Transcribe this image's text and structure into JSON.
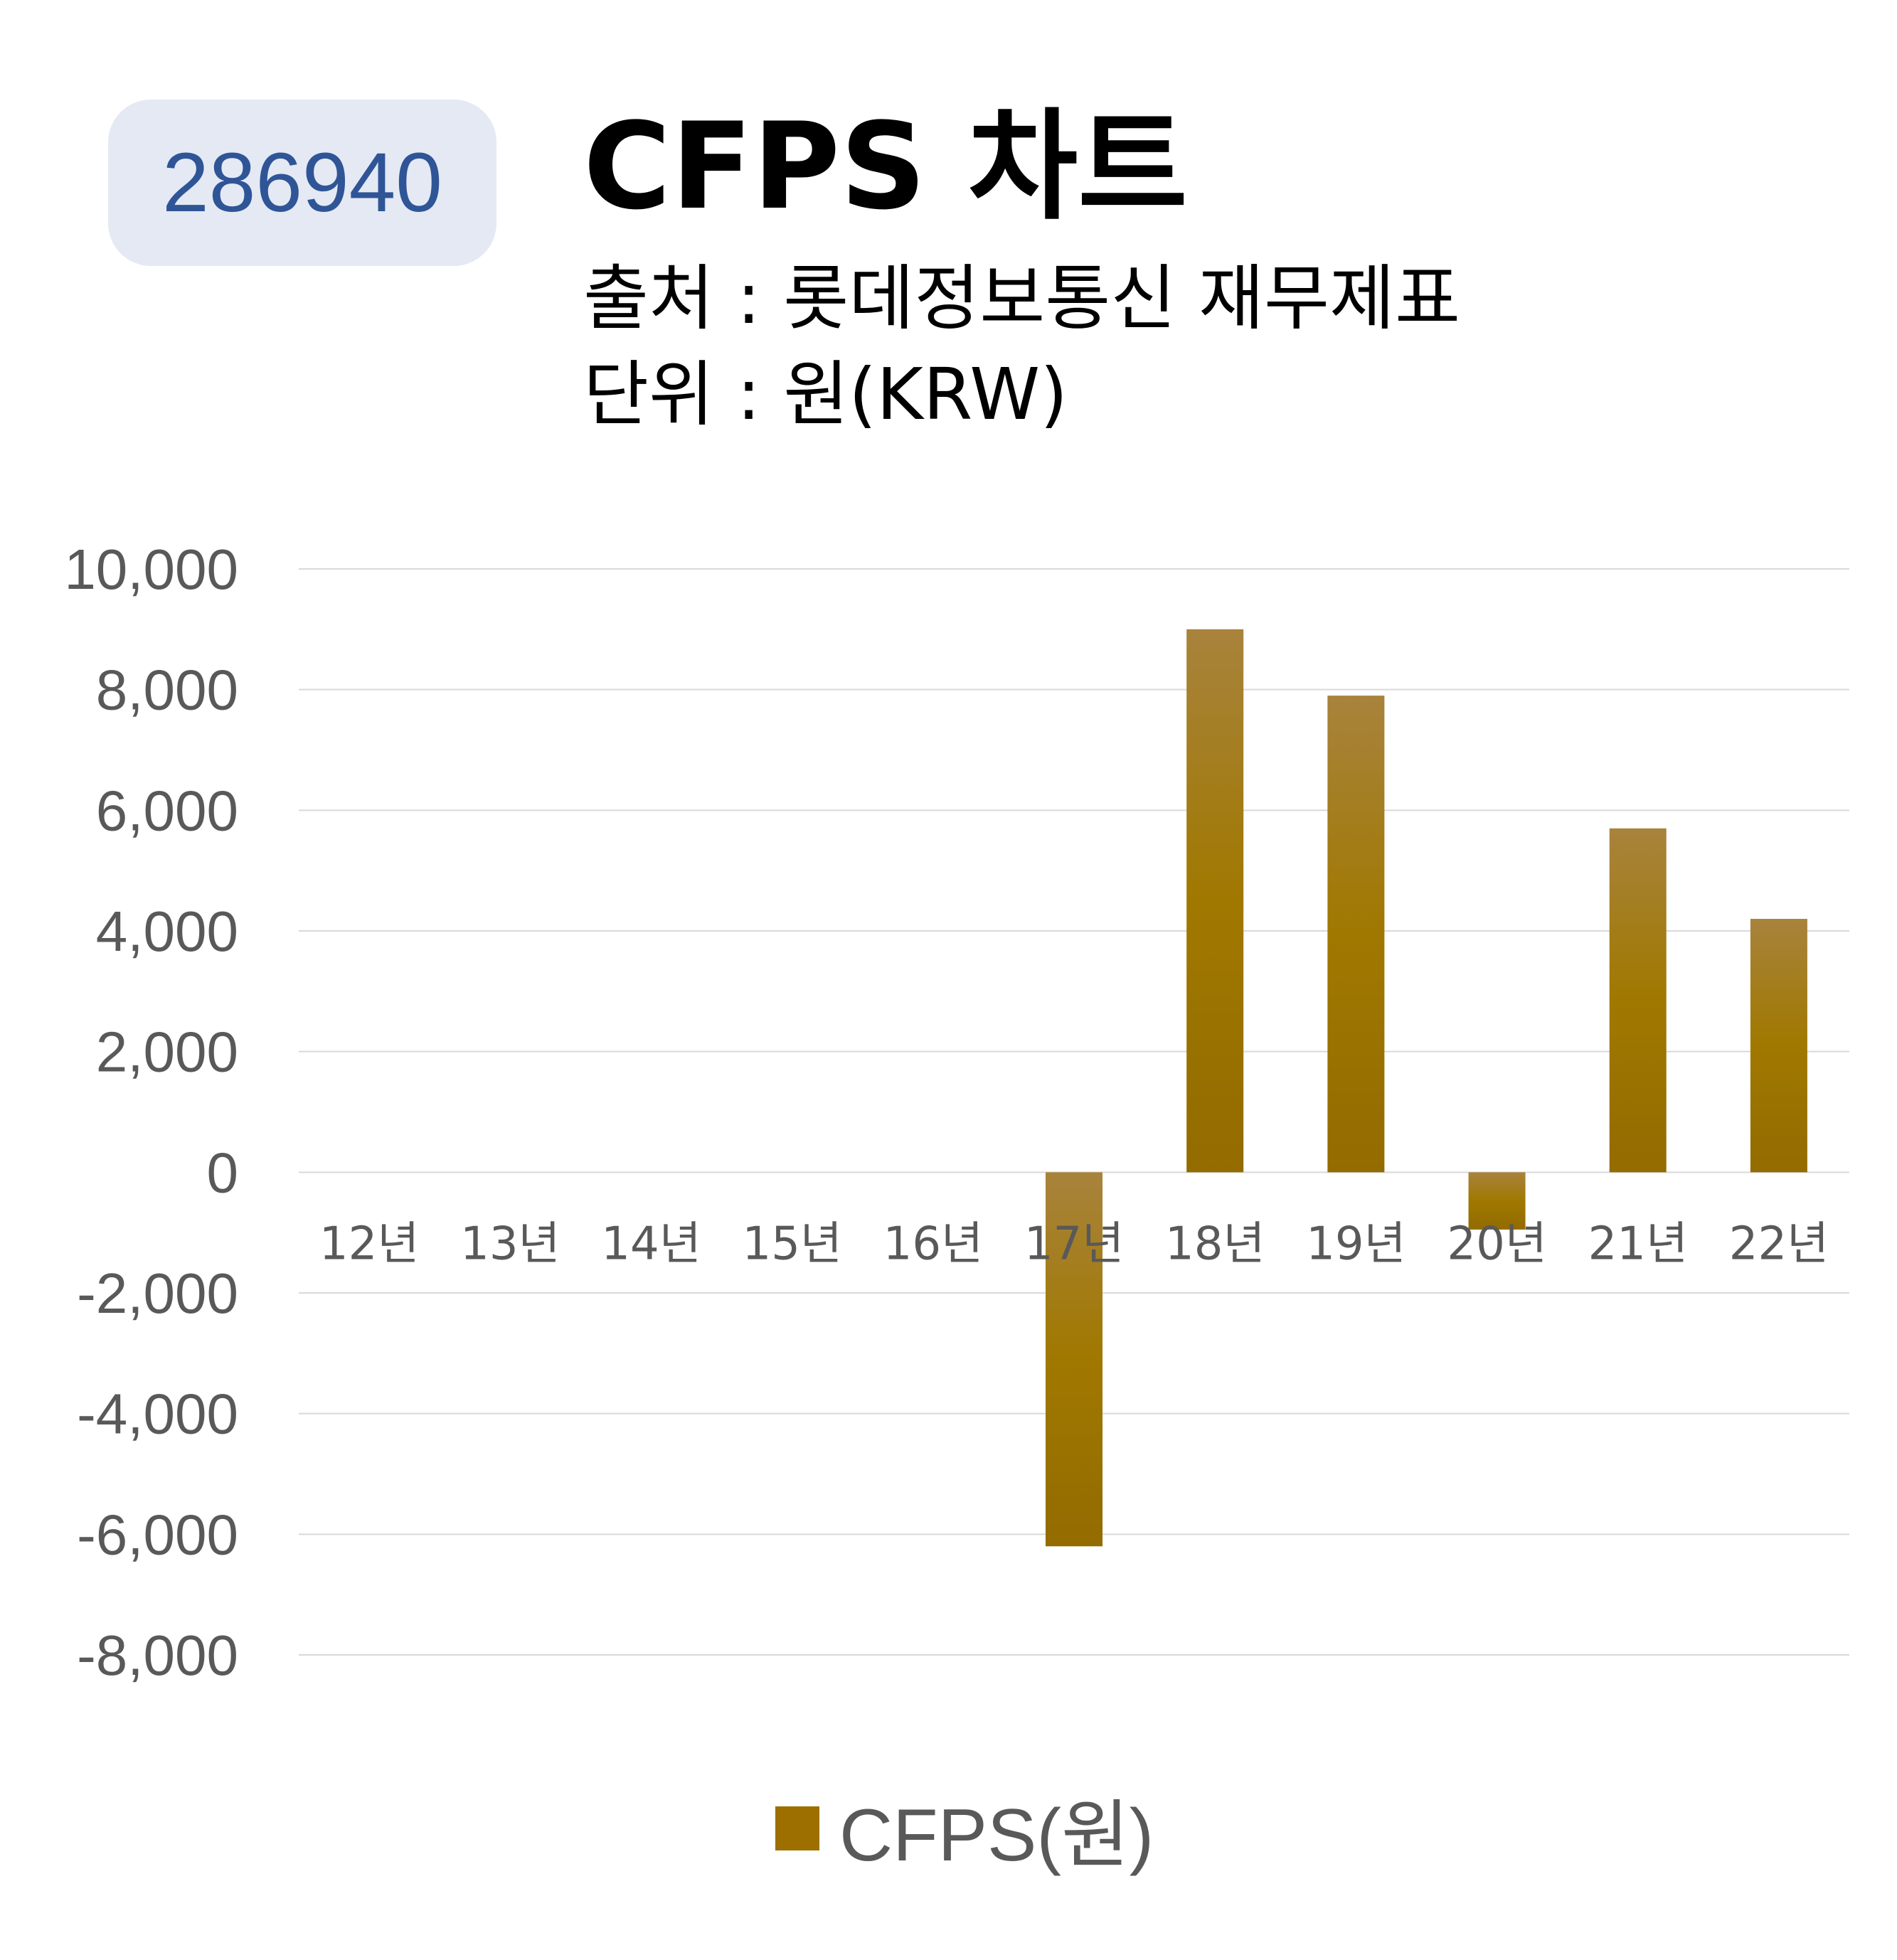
{
  "badge": {
    "code": "286940"
  },
  "header": {
    "title": "CFPS 차트",
    "source": "출처 : 롯데정보통신 재무제표",
    "unit": "단위 : 원(KRW)"
  },
  "colors": {
    "bar": "#9c6f00",
    "bar_top": "#a8833c",
    "grid": "#d9d9d9",
    "axis_text": "#595959",
    "badge_bg": "#e4e9f4",
    "badge_text": "#2f5597"
  },
  "chart_data": {
    "type": "bar",
    "categories": [
      "12년",
      "13년",
      "14년",
      "15년",
      "16년",
      "17년",
      "18년",
      "19년",
      "20년",
      "21년",
      "22년"
    ],
    "series": [
      {
        "name": "CFPS(원)",
        "values": [
          null,
          null,
          null,
          null,
          null,
          -6200,
          9000,
          7900,
          -950,
          5700,
          4200
        ]
      }
    ],
    "yticks": [
      "10,000",
      "8,000",
      "6,000",
      "4,000",
      "2,000",
      "0",
      "-2,000",
      "-4,000",
      "-6,000",
      "-8,000"
    ],
    "ylim": [
      -8000,
      10000
    ],
    "grid": true,
    "legend": "bottom"
  }
}
